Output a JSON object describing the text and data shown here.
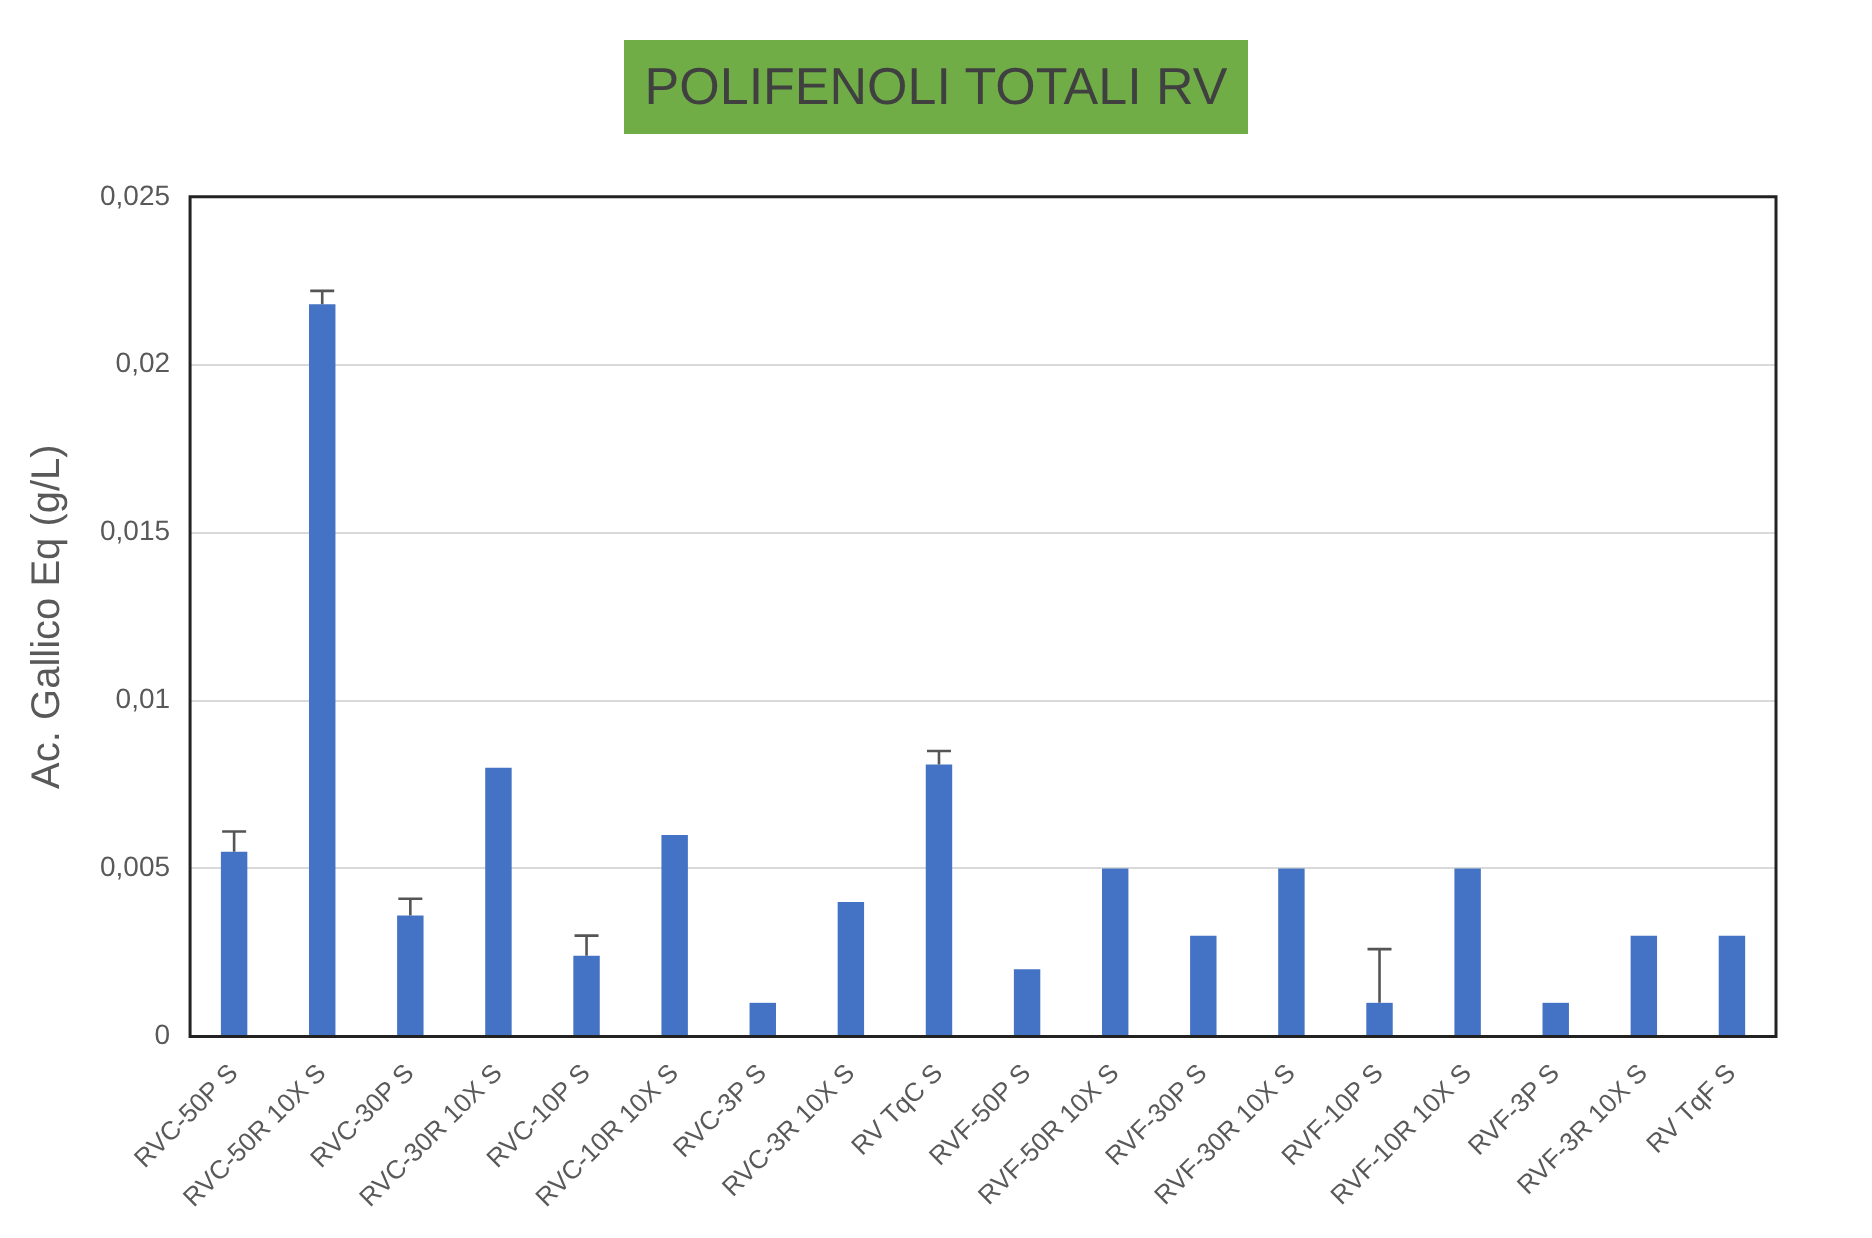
{
  "chart_data": {
    "type": "bar",
    "title": "POLIFENOLI TOTALI  RV",
    "ylabel": "Ac. Gallico Eq (g/L)",
    "categories": [
      "RVC-50P S",
      "RVC-50R 10X S",
      "RVC-30P S",
      "RVC-30R 10X S",
      "RVC-10P S",
      "RVC-10R 10X S",
      "RVC-3P S",
      "RVC-3R 10X S",
      "RV TqC S",
      "RVF-50P S",
      "RVF-50R 10X S",
      "RVF-30P S",
      "RVF-30R 10X S",
      "RVF-10P S",
      "RVF-10R 10X S",
      "RVF-3P S",
      "RVF-3R 10X S",
      "RV TqF S"
    ],
    "values": [
      0.0055,
      0.0218,
      0.0036,
      0.008,
      0.0024,
      0.006,
      0.001,
      0.004,
      0.0081,
      0.002,
      0.005,
      0.003,
      0.005,
      0.001,
      0.005,
      0.001,
      0.003,
      0.003
    ],
    "errors": [
      [
        0.0055,
        0.0061
      ],
      [
        0.0218,
        0.0222
      ],
      [
        0.0036,
        0.0041
      ],
      null,
      [
        0.0024,
        0.003
      ],
      null,
      null,
      null,
      [
        0.0081,
        0.0085
      ],
      null,
      null,
      null,
      null,
      [
        0.001,
        0.0026
      ],
      null,
      null,
      null,
      null
    ],
    "color": "#4472c4",
    "ylim": [
      0,
      0.025
    ],
    "yticks": [
      {
        "value": 0,
        "label": "0"
      },
      {
        "value": 0.005,
        "label": "0,005"
      },
      {
        "value": 0.01,
        "label": "0,01"
      },
      {
        "value": 0.015,
        "label": "0,015"
      },
      {
        "value": 0.02,
        "label": "0,02"
      },
      {
        "value": 0.025,
        "label": "0,025"
      }
    ],
    "grid": "y",
    "legend": false
  }
}
